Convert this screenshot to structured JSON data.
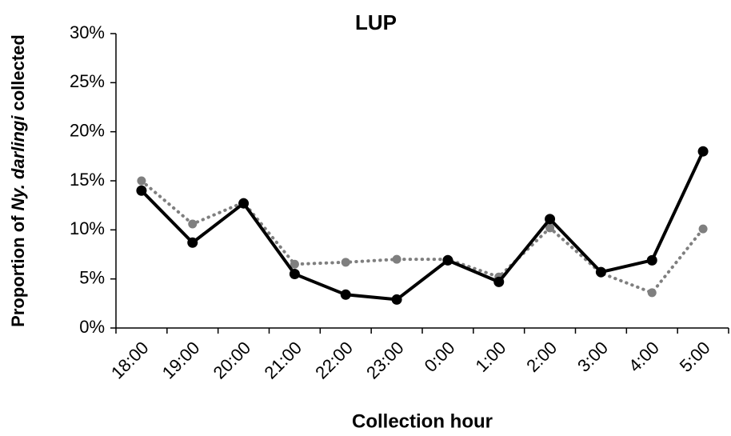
{
  "chart_data": {
    "type": "line",
    "title": "LUP",
    "y_label": [
      "Proportion of",
      "Ny. darlingi",
      "collected"
    ],
    "x_label": "Collection hour",
    "categories": [
      "18:00",
      "19:00",
      "20:00",
      "21:00",
      "22:00",
      "23:00",
      "0:00",
      "1:00",
      "2:00",
      "3:00",
      "4:00",
      "5:00"
    ],
    "series": [
      {
        "color": "#000000",
        "style": "solid",
        "values": [
          14,
          8.7,
          12.7,
          5.5,
          3.4,
          2.9,
          6.9,
          4.7,
          11.1,
          5.7,
          6.9,
          18
        ]
      },
      {
        "color": "#7f7f7f",
        "style": "dotted",
        "values": [
          15,
          10.6,
          12.8,
          6.5,
          6.7,
          7,
          7,
          5.2,
          10.2,
          5.6,
          3.6,
          10.1
        ]
      }
    ],
    "ylim": [
      0,
      30
    ],
    "yticks": [
      {
        "value": 0,
        "label": "0%"
      },
      {
        "value": 5,
        "label": "5%"
      },
      {
        "value": 10,
        "label": "10%"
      },
      {
        "value": 15,
        "label": "15%"
      },
      {
        "value": 20,
        "label": "20%"
      },
      {
        "value": 25,
        "label": "25%"
      },
      {
        "value": 30,
        "label": "30%"
      }
    ]
  }
}
